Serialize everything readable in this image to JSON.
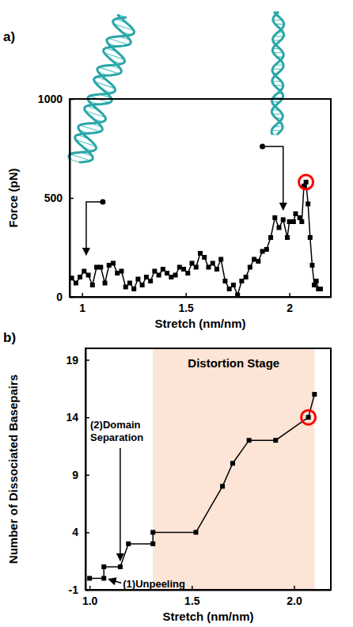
{
  "chart_data": [
    {
      "panel": "a)",
      "type": "line",
      "x_label": "Stretch (nm/nm)",
      "y_label": "Force (pN)",
      "xlim": [
        0.94,
        2.2
      ],
      "xticks": [
        1,
        1.5,
        2
      ],
      "ylim": [
        0,
        1000
      ],
      "yticks": [
        0,
        500,
        1000
      ],
      "x": [
        0.95,
        0.97,
        0.99,
        1.01,
        1.03,
        1.05,
        1.07,
        1.09,
        1.11,
        1.13,
        1.15,
        1.17,
        1.19,
        1.21,
        1.23,
        1.25,
        1.27,
        1.29,
        1.31,
        1.33,
        1.35,
        1.37,
        1.39,
        1.41,
        1.43,
        1.45,
        1.47,
        1.49,
        1.51,
        1.53,
        1.55,
        1.57,
        1.59,
        1.61,
        1.63,
        1.65,
        1.67,
        1.69,
        1.71,
        1.73,
        1.75,
        1.77,
        1.79,
        1.81,
        1.83,
        1.85,
        1.87,
        1.89,
        1.91,
        1.93,
        1.95,
        1.97,
        1.99,
        2.0,
        2.02,
        2.03,
        2.05,
        2.06,
        2.07,
        2.08,
        2.09,
        2.1,
        2.11,
        2.12,
        2.13,
        2.14,
        2.15
      ],
      "values": [
        95,
        70,
        100,
        130,
        110,
        60,
        150,
        150,
        70,
        160,
        170,
        120,
        130,
        50,
        70,
        40,
        90,
        60,
        100,
        80,
        130,
        110,
        140,
        120,
        100,
        110,
        150,
        140,
        120,
        170,
        150,
        220,
        200,
        150,
        170,
        140,
        190,
        80,
        40,
        60,
        10,
        80,
        100,
        150,
        190,
        180,
        230,
        240,
        300,
        400,
        350,
        390,
        300,
        380,
        380,
        420,
        400,
        380,
        560,
        580,
        470,
        300,
        160,
        60,
        80,
        40,
        40
      ],
      "color": "#000000",
      "marker": "square",
      "highlight": {
        "x": 2.08,
        "y": 580,
        "color": "#ff0000"
      }
    },
    {
      "panel": "b)",
      "type": "line",
      "x_label": "Stretch (nm/nm)",
      "y_label": "Number of Dissociated Basepairs",
      "xlim": [
        0.98,
        2.18
      ],
      "xticks": [
        {
          "value": 1,
          "label": "1.0"
        },
        1.5,
        {
          "value": 2,
          "label": "2.0"
        }
      ],
      "ylim": [
        -1,
        20
      ],
      "yticks": [
        -1,
        4,
        9,
        14,
        19
      ],
      "x": [
        1.0,
        1.07,
        1.07,
        1.15,
        1.19,
        1.31,
        1.31,
        1.52,
        1.65,
        1.7,
        1.78,
        1.91,
        2.07,
        2.1
      ],
      "values": [
        0,
        0,
        1,
        1,
        3,
        3,
        4,
        4,
        8,
        10,
        12,
        12,
        14,
        16
      ],
      "color": "#000000",
      "marker": "square",
      "regions": [
        {
          "label": "Distortion Stage",
          "x": [
            1.31,
            2.1
          ],
          "color": "#fce4d6"
        }
      ],
      "annotations": [
        {
          "text": "(1)Unpeeling",
          "x": 1.07,
          "y": 0
        },
        {
          "text": "(2)Domain Separation",
          "x": 1.15,
          "y": 1
        }
      ],
      "highlight": {
        "x": 2.07,
        "y": 14,
        "color": "#ff0000"
      }
    }
  ]
}
